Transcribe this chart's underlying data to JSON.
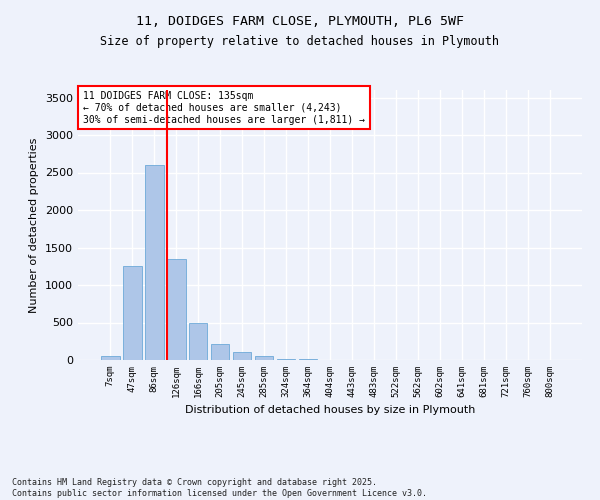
{
  "title_line1": "11, DOIDGES FARM CLOSE, PLYMOUTH, PL6 5WF",
  "title_line2": "Size of property relative to detached houses in Plymouth",
  "xlabel": "Distribution of detached houses by size in Plymouth",
  "ylabel": "Number of detached properties",
  "categories": [
    "7sqm",
    "47sqm",
    "86sqm",
    "126sqm",
    "166sqm",
    "205sqm",
    "245sqm",
    "285sqm",
    "324sqm",
    "364sqm",
    "404sqm",
    "443sqm",
    "483sqm",
    "522sqm",
    "562sqm",
    "602sqm",
    "641sqm",
    "681sqm",
    "721sqm",
    "760sqm",
    "800sqm"
  ],
  "values": [
    55,
    1250,
    2600,
    1350,
    500,
    215,
    110,
    55,
    20,
    8,
    3,
    1,
    0,
    0,
    0,
    0,
    0,
    0,
    0,
    0,
    0
  ],
  "bar_color": "#aec6e8",
  "bar_edge_color": "#5a9fd4",
  "vline_color": "red",
  "vline_pos": 2.6,
  "annotation_text": "11 DOIDGES FARM CLOSE: 135sqm\n← 70% of detached houses are smaller (4,243)\n30% of semi-detached houses are larger (1,811) →",
  "annotation_box_color": "red",
  "background_color": "#eef2fb",
  "grid_color": "#ffffff",
  "ylim": [
    0,
    3600
  ],
  "yticks": [
    0,
    500,
    1000,
    1500,
    2000,
    2500,
    3000,
    3500
  ],
  "footer_line1": "Contains HM Land Registry data © Crown copyright and database right 2025.",
  "footer_line2": "Contains public sector information licensed under the Open Government Licence v3.0."
}
